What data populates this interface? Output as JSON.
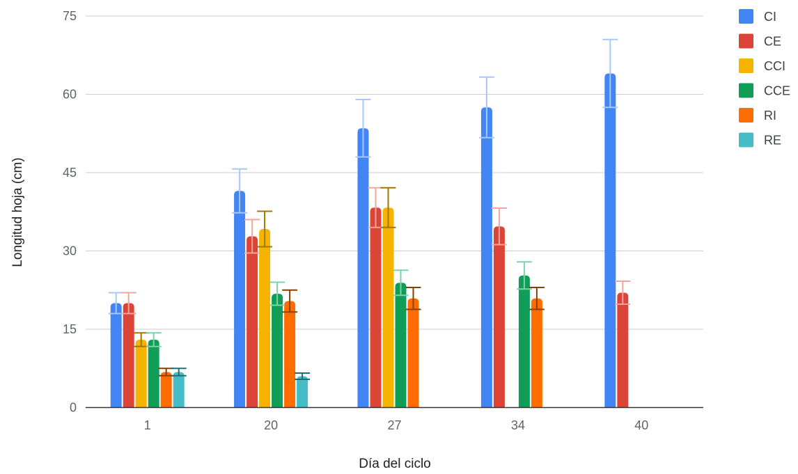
{
  "chart_data": {
    "type": "bar",
    "title": "",
    "xlabel": "Día del ciclo",
    "ylabel": "Longitud hoja (cm)",
    "ylim": [
      0,
      75
    ],
    "yticks": [
      0,
      15,
      30,
      45,
      60,
      75
    ],
    "categories": [
      "1",
      "20",
      "27",
      "34",
      "40"
    ],
    "grid": true,
    "legend_position": "right",
    "series": [
      {
        "name": "CI",
        "color": "#4285f4",
        "error_color": "#a8c7fa",
        "values": [
          20,
          41.5,
          53.5,
          57.5,
          64
        ],
        "errors": [
          2,
          4.2,
          5.5,
          5.8,
          6.5
        ]
      },
      {
        "name": "CE",
        "color": "#db4437",
        "error_color": "#f0a69e",
        "values": [
          20,
          32.8,
          38.3,
          34.7,
          22
        ],
        "errors": [
          2,
          3.2,
          3.8,
          3.5,
          2.2
        ]
      },
      {
        "name": "CCI",
        "color": "#f4b400",
        "error_color": "#a07700",
        "values": [
          13,
          34.2,
          38.3,
          null,
          null
        ],
        "errors": [
          1.3,
          3.4,
          3.8,
          null,
          null
        ]
      },
      {
        "name": "CCE",
        "color": "#0f9d58",
        "error_color": "#7fd1a7",
        "values": [
          13,
          21.8,
          23.9,
          25.3,
          null
        ],
        "errors": [
          1.3,
          2.2,
          2.4,
          2.6,
          null
        ]
      },
      {
        "name": "RI",
        "color": "#ff6d00",
        "error_color": "#8a3f00",
        "values": [
          6.8,
          20.4,
          20.9,
          20.9,
          null
        ],
        "errors": [
          0.7,
          2.1,
          2.1,
          2.1,
          null
        ]
      },
      {
        "name": "RE",
        "color": "#46bdc6",
        "error_color": "#1f6f76",
        "values": [
          6.8,
          6,
          null,
          null,
          null
        ],
        "errors": [
          0.7,
          0.6,
          null,
          null,
          null
        ]
      }
    ]
  }
}
